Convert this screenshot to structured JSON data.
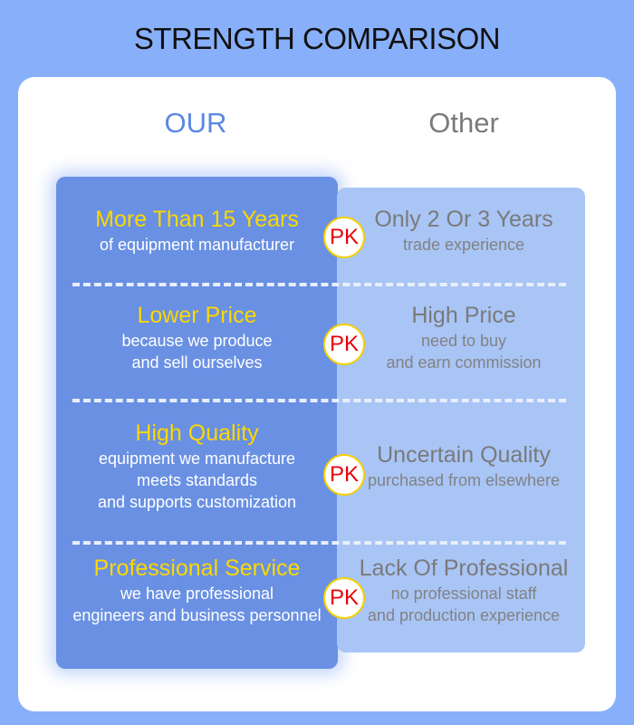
{
  "title": "STRENGTH COMPARISON",
  "columns": {
    "our": "OUR",
    "other": "Other"
  },
  "badge": "PK",
  "colors": {
    "background": "#88b0fa",
    "our_panel": "#6990e3",
    "other_panel": "#a9c5f6",
    "highlight": "#fcd800",
    "badge_text": "#e8000a"
  },
  "rows": [
    {
      "our_title": "More Than 15 Years",
      "our_desc": [
        "of equipment manufacturer"
      ],
      "other_title": "Only 2 Or 3 Years",
      "other_desc": [
        "trade experience"
      ]
    },
    {
      "our_title": "Lower Price",
      "our_desc": [
        "because we produce",
        "and sell ourselves"
      ],
      "other_title": "High Price",
      "other_desc": [
        "need to buy",
        "and earn commission"
      ]
    },
    {
      "our_title": "High Quality",
      "our_desc": [
        "equipment we manufacture",
        "meets standards",
        "and supports customization"
      ],
      "other_title": "Uncertain Quality",
      "other_desc": [
        "purchased from elsewhere"
      ]
    },
    {
      "our_title": "Professional Service",
      "our_desc": [
        "we have professional",
        "engineers and business personnel"
      ],
      "other_title": "Lack Of Professional",
      "other_desc": [
        "no professional staff",
        "and production experience"
      ]
    }
  ]
}
